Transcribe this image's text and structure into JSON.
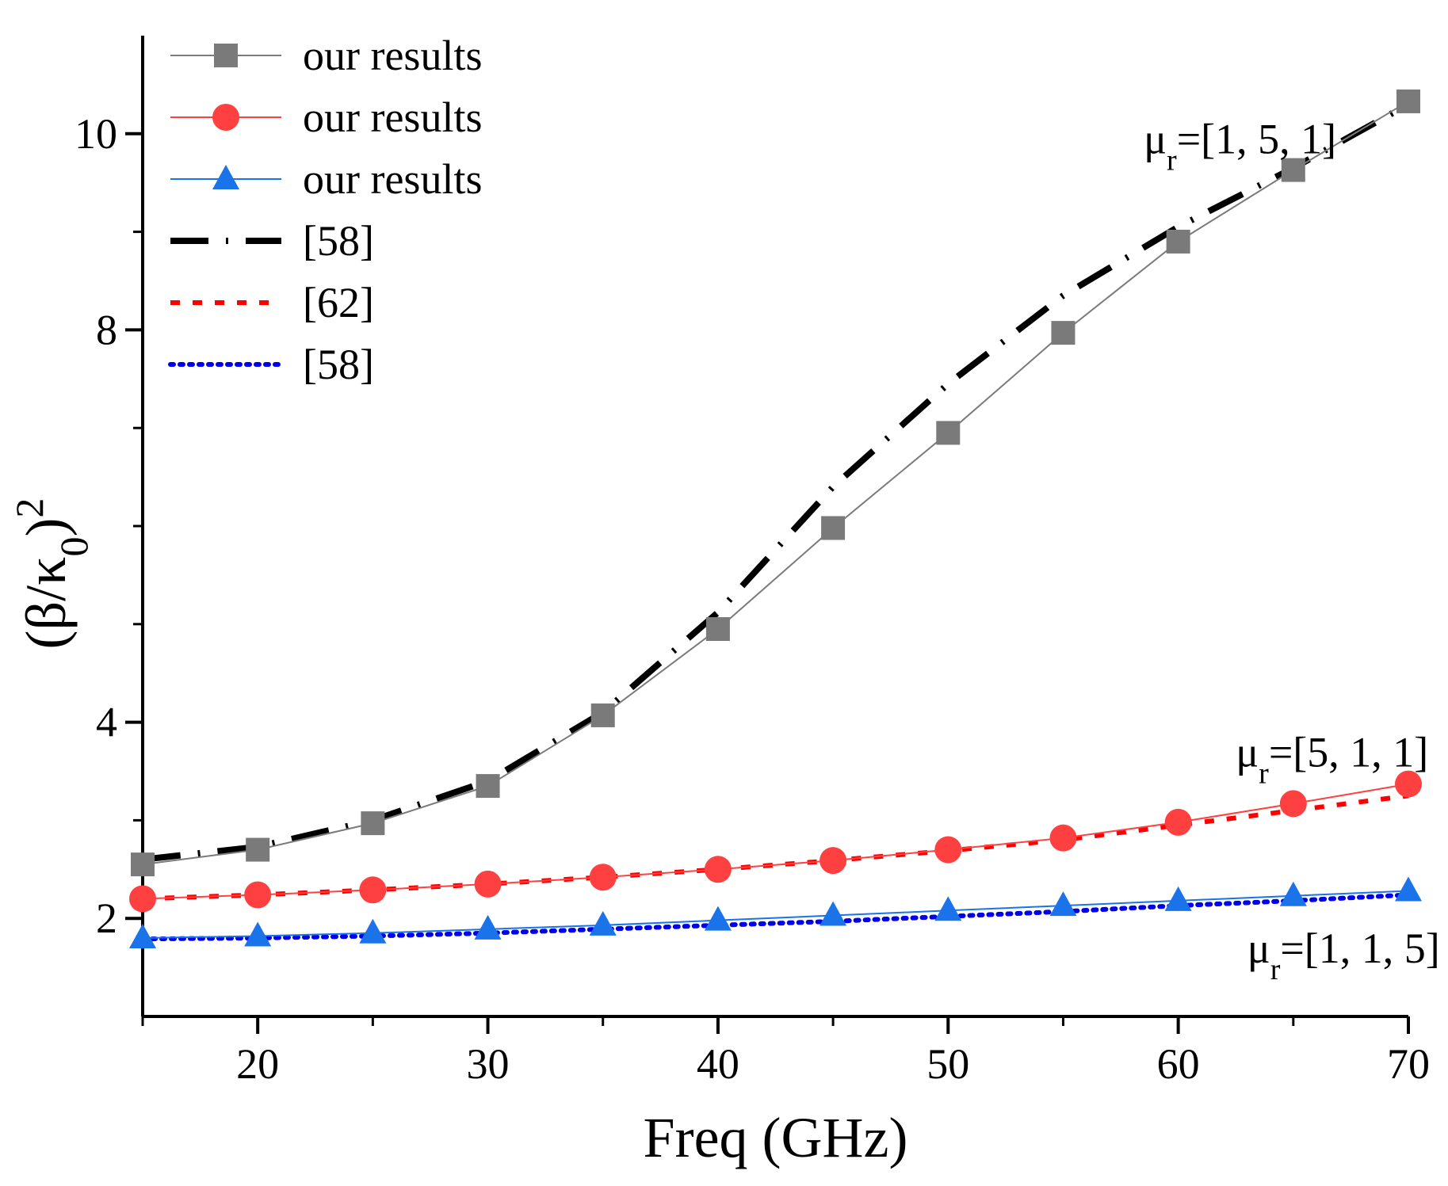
{
  "chart_data": {
    "type": "line",
    "title": "",
    "xlabel": "Freq (GHz)",
    "ylabel_main": "(β/κ",
    "ylabel_sub": "0",
    "ylabel_close": ")",
    "ylabel_sup": "2",
    "xlim": [
      15,
      70
    ],
    "ylim": [
      1,
      11
    ],
    "x_ticks": [
      20,
      30,
      40,
      50,
      60,
      70
    ],
    "y_ticks": [
      2,
      4,
      8,
      10
    ],
    "x_minor_ticks": [
      15,
      25,
      35,
      45,
      55,
      65
    ],
    "y_minor_ticks": [
      3,
      5,
      6,
      7,
      9
    ],
    "legend_position": "top-left",
    "series": [
      {
        "name": "our results",
        "style": "solid-marker",
        "marker": "square",
        "color": "#7a7a7a",
        "x": [
          15,
          20,
          25,
          30,
          35,
          40,
          45,
          50,
          55,
          60,
          65,
          70
        ],
        "y": [
          2.55,
          2.7,
          2.97,
          3.35,
          4.07,
          4.95,
          5.98,
          6.95,
          7.97,
          8.9,
          9.63,
          10.33
        ]
      },
      {
        "name": "our results",
        "style": "solid-marker",
        "marker": "circle",
        "color": "#ff4040",
        "x": [
          15,
          20,
          25,
          30,
          35,
          40,
          45,
          50,
          55,
          60,
          65,
          70
        ],
        "y": [
          2.2,
          2.24,
          2.29,
          2.35,
          2.42,
          2.5,
          2.59,
          2.7,
          2.82,
          2.98,
          3.17,
          3.37
        ]
      },
      {
        "name": "our results",
        "style": "solid-marker",
        "marker": "triangle",
        "color": "#1a73e8",
        "x": [
          15,
          20,
          25,
          30,
          35,
          40,
          45,
          50,
          55,
          60,
          65,
          70
        ],
        "y": [
          1.8,
          1.82,
          1.85,
          1.89,
          1.93,
          1.98,
          2.03,
          2.08,
          2.13,
          2.18,
          2.23,
          2.28
        ]
      },
      {
        "name": "[58]",
        "style": "dash-dot",
        "marker": "none",
        "color": "#000000",
        "x": [
          15,
          20,
          25,
          30,
          35,
          40,
          45,
          50,
          55,
          60,
          65,
          70
        ],
        "y": [
          2.6,
          2.73,
          3.0,
          3.4,
          4.1,
          5.12,
          6.4,
          7.45,
          8.35,
          9.05,
          9.65,
          10.3
        ]
      },
      {
        "name": "[62]",
        "style": "dotted-dash",
        "marker": "none",
        "color": "#ff0000",
        "x": [
          15,
          20,
          25,
          30,
          35,
          40,
          45,
          50,
          55,
          60,
          65,
          70
        ],
        "y": [
          2.2,
          2.24,
          2.29,
          2.35,
          2.42,
          2.5,
          2.59,
          2.69,
          2.8,
          2.95,
          3.1,
          3.25
        ]
      },
      {
        "name": "[58]",
        "style": "dotted",
        "marker": "none",
        "color": "#0000ee",
        "x": [
          15,
          20,
          25,
          30,
          35,
          40,
          45,
          50,
          55,
          60,
          65,
          70
        ],
        "y": [
          1.79,
          1.8,
          1.82,
          1.85,
          1.89,
          1.93,
          1.97,
          2.02,
          2.07,
          2.13,
          2.18,
          2.24
        ]
      }
    ],
    "annotations": [
      {
        "base": "μ",
        "sub": "r",
        "rest": "=[1, 5, 1]",
        "x": 58.5,
        "y": 9.8
      },
      {
        "base": "μ",
        "sub": "r",
        "rest": "=[5, 1, 1]",
        "x": 62.5,
        "y": 3.55
      },
      {
        "base": "μ",
        "sub": "r",
        "rest": "=[1, 1, 5]",
        "x": 63,
        "y": 1.55
      }
    ]
  }
}
